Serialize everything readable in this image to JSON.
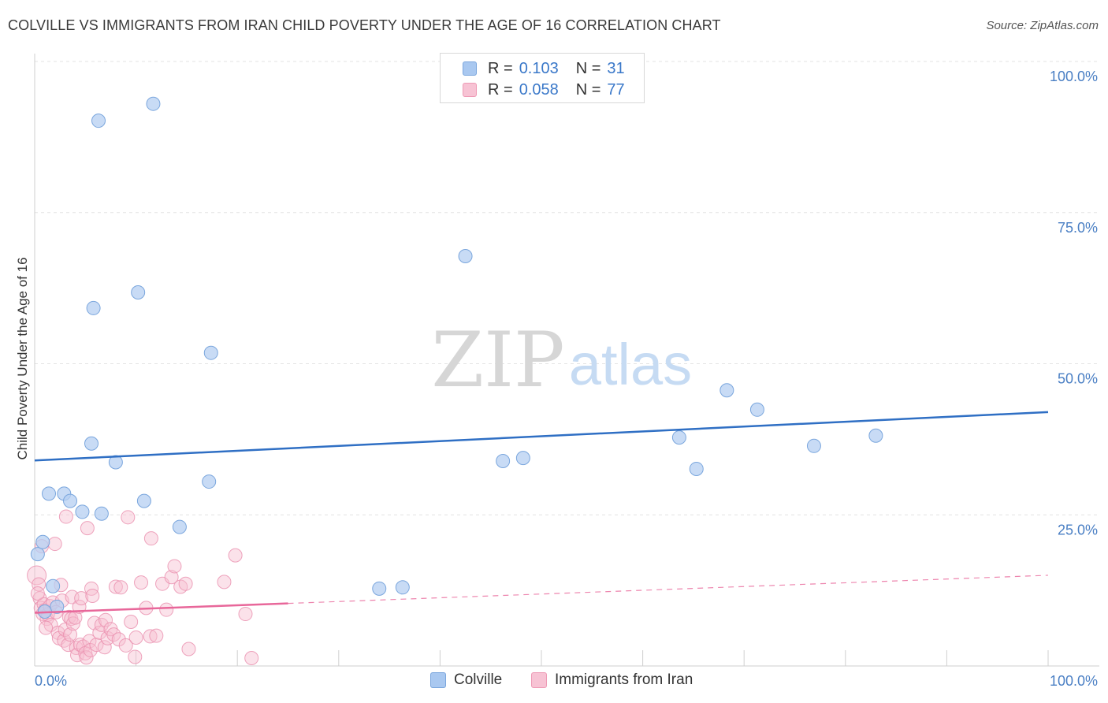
{
  "header": {
    "title": "COLVILLE VS IMMIGRANTS FROM IRAN CHILD POVERTY UNDER THE AGE OF 16 CORRELATION CHART",
    "source": "Source: ZipAtlas.com"
  },
  "watermark": {
    "zip": "ZIP",
    "atlas": "atlas"
  },
  "legend": {
    "rows": [
      {
        "r_label": "R =",
        "r_value": "0.103",
        "n_label": "N =",
        "n_value": "31",
        "color": "#a9c8f0",
        "border": "#7aa6dd"
      },
      {
        "r_label": "R =",
        "r_value": "0.058",
        "n_label": "N =",
        "n_value": "77",
        "color": "#f7c3d4",
        "border": "#ee9ab5"
      }
    ]
  },
  "bottom_legend": {
    "series1": "Colville",
    "series2": "Immigrants from Iran"
  },
  "colors": {
    "blue_fill": "#b5cff2",
    "blue_stroke": "#7aa6dd",
    "blue_line": "#2f6fc4",
    "pink_fill": "#f6bfd1",
    "pink_stroke": "#ea8fae",
    "pink_line": "#e8679a",
    "tick_text": "#4a7fc4",
    "grid": "#e3e3e3"
  },
  "chart_data": {
    "type": "scatter",
    "title": "COLVILLE VS IMMIGRANTS FROM IRAN CHILD POVERTY UNDER THE AGE OF 16 CORRELATION CHART",
    "xlabel": "",
    "ylabel": "Child Poverty Under the Age of 16",
    "xlim": [
      0,
      100
    ],
    "ylim": [
      0,
      100
    ],
    "x_tick_labels": [
      "0.0%",
      "100.0%"
    ],
    "y_tick_labels": [
      {
        "value": 100,
        "label": "100.0%"
      },
      {
        "value": 75,
        "label": "75.0%"
      },
      {
        "value": 50,
        "label": "50.0%"
      },
      {
        "value": 25,
        "label": "25.0%"
      }
    ],
    "series": [
      {
        "name": "Colville",
        "R": 0.103,
        "N": 31,
        "trend": {
          "x": [
            0,
            100
          ],
          "y": [
            34,
            42
          ],
          "dashed_from": null
        },
        "points": [
          [
            0.3,
            18.5
          ],
          [
            0.8,
            20.5
          ],
          [
            1.4,
            28.5
          ],
          [
            1.8,
            13.2
          ],
          [
            2.2,
            9.8
          ],
          [
            2.9,
            28.5
          ],
          [
            3.5,
            27.3
          ],
          [
            4.7,
            25.5
          ],
          [
            5.6,
            36.8
          ],
          [
            5.8,
            59.2
          ],
          [
            6.3,
            90.2
          ],
          [
            6.6,
            25.2
          ],
          [
            8.0,
            33.7
          ],
          [
            10.2,
            61.8
          ],
          [
            10.8,
            27.3
          ],
          [
            11.7,
            93.0
          ],
          [
            14.3,
            23.0
          ],
          [
            17.2,
            30.5
          ],
          [
            17.4,
            51.8
          ],
          [
            34.0,
            12.8
          ],
          [
            36.3,
            13.0
          ],
          [
            42.5,
            67.8
          ],
          [
            46.2,
            33.9
          ],
          [
            48.2,
            34.4
          ],
          [
            63.6,
            37.8
          ],
          [
            65.3,
            32.6
          ],
          [
            68.3,
            45.6
          ],
          [
            71.3,
            42.4
          ],
          [
            76.9,
            36.4
          ],
          [
            83.0,
            38.1
          ],
          [
            1.0,
            9.0
          ]
        ]
      },
      {
        "name": "Immigrants from Iran",
        "R": 0.058,
        "N": 77,
        "trend": {
          "x": [
            0,
            100
          ],
          "y": [
            8.8,
            15.0
          ],
          "dashed_from": 25
        },
        "points": [
          [
            0.2,
            15.0
          ],
          [
            0.4,
            13.5
          ],
          [
            0.5,
            11.2
          ],
          [
            0.6,
            9.6
          ],
          [
            0.7,
            19.8
          ],
          [
            0.8,
            8.6
          ],
          [
            0.9,
            10.2
          ],
          [
            1.0,
            9.2
          ],
          [
            1.2,
            7.8
          ],
          [
            1.3,
            8.5
          ],
          [
            1.5,
            9.9
          ],
          [
            1.6,
            6.8
          ],
          [
            1.8,
            10.5
          ],
          [
            2.0,
            20.2
          ],
          [
            2.1,
            8.9
          ],
          [
            2.3,
            5.5
          ],
          [
            2.4,
            4.6
          ],
          [
            2.6,
            13.4
          ],
          [
            2.7,
            10.8
          ],
          [
            2.9,
            4.2
          ],
          [
            3.0,
            6.0
          ],
          [
            3.1,
            24.7
          ],
          [
            3.3,
            3.5
          ],
          [
            3.4,
            8.1
          ],
          [
            3.5,
            5.2
          ],
          [
            3.6,
            7.8
          ],
          [
            3.7,
            11.4
          ],
          [
            3.8,
            7.0
          ],
          [
            4.0,
            8.0
          ],
          [
            4.1,
            3.0
          ],
          [
            4.2,
            1.8
          ],
          [
            4.4,
            9.8
          ],
          [
            4.5,
            3.5
          ],
          [
            4.6,
            11.2
          ],
          [
            4.8,
            3.2
          ],
          [
            5.0,
            2.1
          ],
          [
            5.1,
            1.4
          ],
          [
            5.2,
            22.8
          ],
          [
            5.4,
            4.1
          ],
          [
            5.5,
            2.6
          ],
          [
            5.6,
            12.8
          ],
          [
            5.7,
            11.6
          ],
          [
            5.9,
            7.1
          ],
          [
            6.1,
            3.5
          ],
          [
            6.4,
            5.5
          ],
          [
            6.6,
            6.8
          ],
          [
            6.9,
            3.1
          ],
          [
            7.0,
            7.6
          ],
          [
            7.2,
            4.6
          ],
          [
            7.5,
            6.1
          ],
          [
            7.8,
            5.2
          ],
          [
            8.0,
            13.1
          ],
          [
            8.3,
            4.4
          ],
          [
            8.5,
            13.0
          ],
          [
            9.0,
            3.4
          ],
          [
            9.2,
            24.6
          ],
          [
            9.5,
            7.3
          ],
          [
            9.9,
            1.5
          ],
          [
            10.0,
            4.7
          ],
          [
            10.5,
            13.8
          ],
          [
            11.0,
            9.6
          ],
          [
            11.4,
            4.9
          ],
          [
            11.5,
            21.1
          ],
          [
            12.0,
            5.0
          ],
          [
            12.6,
            13.6
          ],
          [
            13.0,
            9.3
          ],
          [
            13.5,
            14.7
          ],
          [
            13.8,
            16.5
          ],
          [
            14.4,
            13.1
          ],
          [
            14.9,
            13.6
          ],
          [
            15.2,
            2.8
          ],
          [
            18.7,
            13.9
          ],
          [
            19.8,
            18.3
          ],
          [
            20.8,
            8.6
          ],
          [
            21.4,
            1.3
          ],
          [
            0.3,
            12.0
          ],
          [
            1.1,
            6.3
          ]
        ]
      }
    ],
    "bottom_legend": [
      "Colville",
      "Immigrants from Iran"
    ]
  }
}
